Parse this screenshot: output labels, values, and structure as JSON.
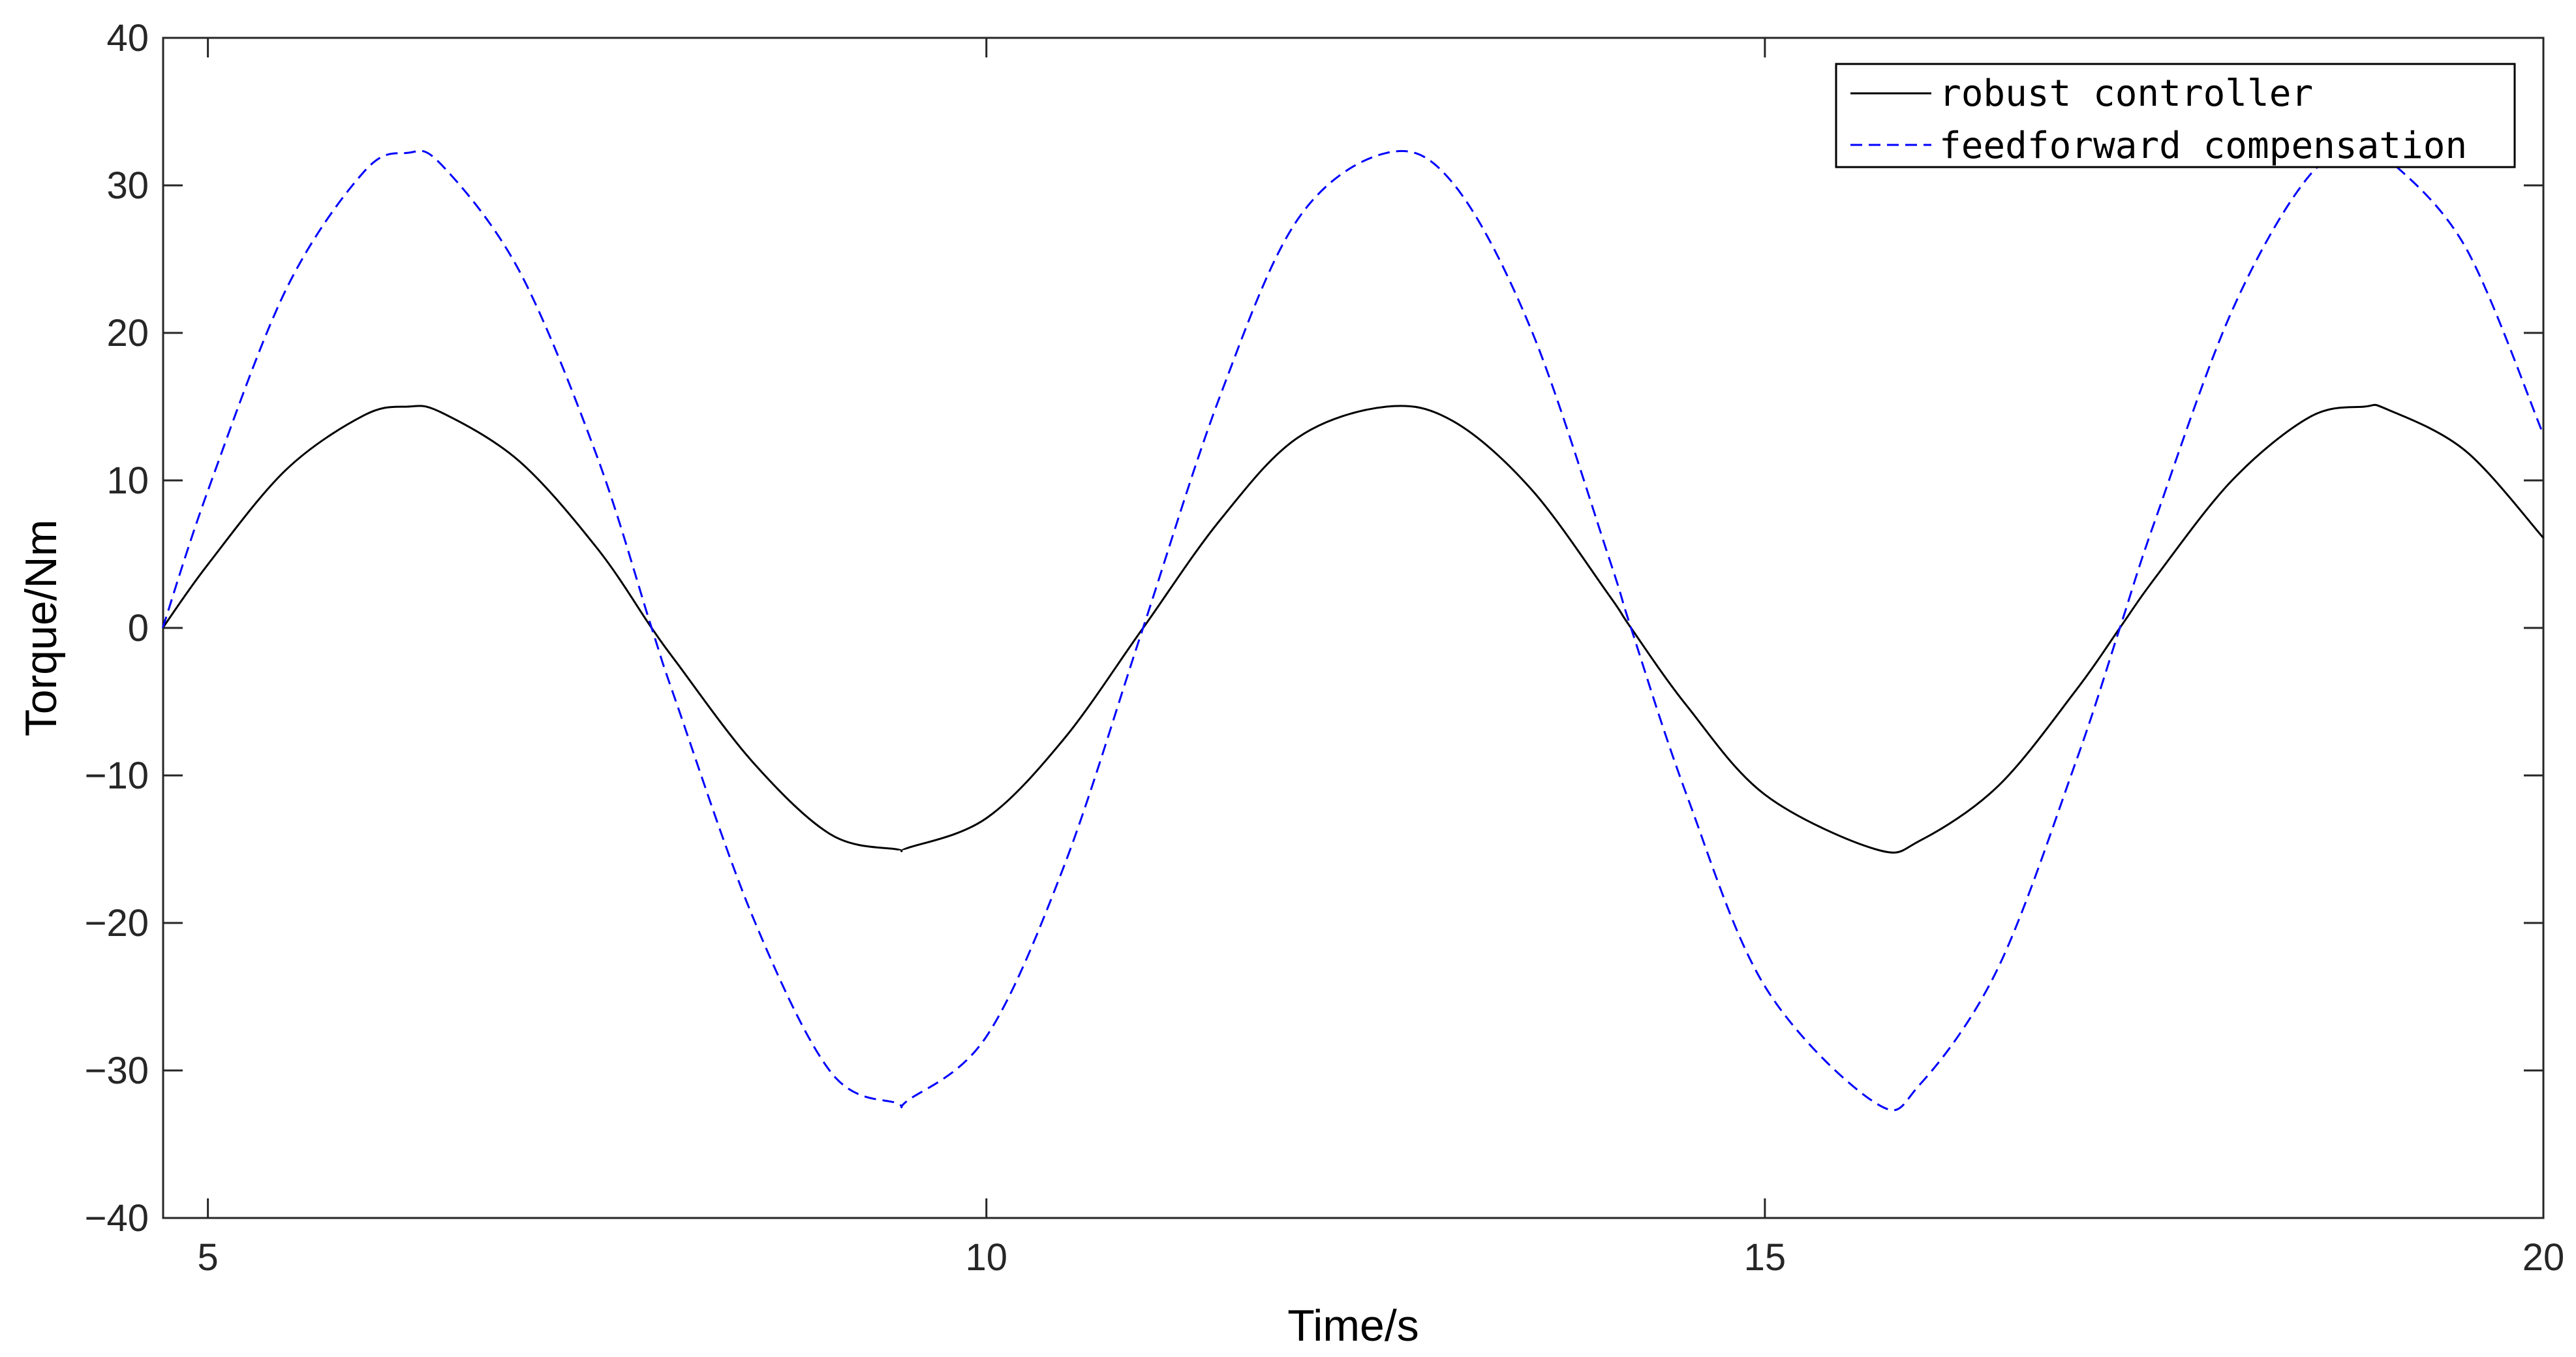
{
  "chart_data": {
    "type": "line",
    "title": "",
    "xlabel": "Time/s",
    "ylabel": "Torque/Nm",
    "xlim": [
      4.7124,
      20
    ],
    "ylim": [
      -40,
      40
    ],
    "xticks": [
      5,
      10,
      15,
      20
    ],
    "yticks": [
      -40,
      -30,
      -20,
      -10,
      0,
      10,
      20,
      30,
      40
    ],
    "grid": false,
    "legend_position": "top-right",
    "series": [
      {
        "name": "robust controller",
        "color": "#000000",
        "linestyle": "solid",
        "x": [
          4.71,
          5.0,
          5.5,
          6.0,
          6.28,
          6.5,
          7.0,
          7.5,
          7.85,
          8.0,
          8.5,
          9.0,
          9.42,
          9.5,
          10.0,
          10.5,
          11.0,
          11.5,
          12.0,
          12.57,
          13.0,
          13.5,
          14.0,
          14.14,
          14.5,
          15.0,
          15.71,
          16.0,
          16.5,
          17.0,
          17.28,
          17.5,
          18.0,
          18.5,
          18.85,
          19.0,
          19.5,
          20.0
        ],
        "y": [
          0.0,
          4.3,
          10.7,
          14.4,
          15.0,
          14.6,
          11.3,
          5.4,
          0.0,
          -2.2,
          -9.1,
          -14.0,
          -15.0,
          -14.9,
          -12.9,
          -7.5,
          -0.1,
          7.3,
          12.9,
          15.0,
          14.0,
          9.4,
          2.2,
          0.0,
          -5.3,
          -11.3,
          -15.0,
          -14.4,
          -10.7,
          -4.2,
          0.0,
          3.3,
          10.0,
          14.3,
          15.0,
          14.8,
          12.0,
          6.1
        ]
      },
      {
        "name": "feedforward compensation",
        "color": "#0000ff",
        "linestyle": "dashed",
        "x": [
          4.71,
          5.0,
          5.5,
          6.0,
          6.28,
          6.5,
          7.0,
          7.5,
          7.85,
          8.0,
          8.5,
          9.0,
          9.42,
          9.5,
          10.0,
          10.5,
          11.0,
          11.5,
          12.0,
          12.57,
          13.0,
          13.5,
          14.0,
          14.14,
          14.5,
          15.0,
          15.71,
          16.0,
          16.5,
          17.0,
          17.28,
          17.5,
          18.0,
          18.5,
          18.85,
          19.0,
          19.5,
          20.0
        ],
        "y": [
          0.0,
          9.3,
          22.9,
          30.9,
          32.2,
          31.4,
          24.2,
          11.6,
          0.0,
          -4.8,
          -19.6,
          -30.1,
          -32.2,
          -32.0,
          -27.7,
          -16.1,
          -0.2,
          15.7,
          27.7,
          32.2,
          30.1,
          20.2,
          4.7,
          0.0,
          -11.4,
          -24.3,
          -32.2,
          -30.9,
          -23.0,
          -9.0,
          0.0,
          7.1,
          21.5,
          30.7,
          32.2,
          31.8,
          25.8,
          13.1
        ]
      }
    ]
  }
}
